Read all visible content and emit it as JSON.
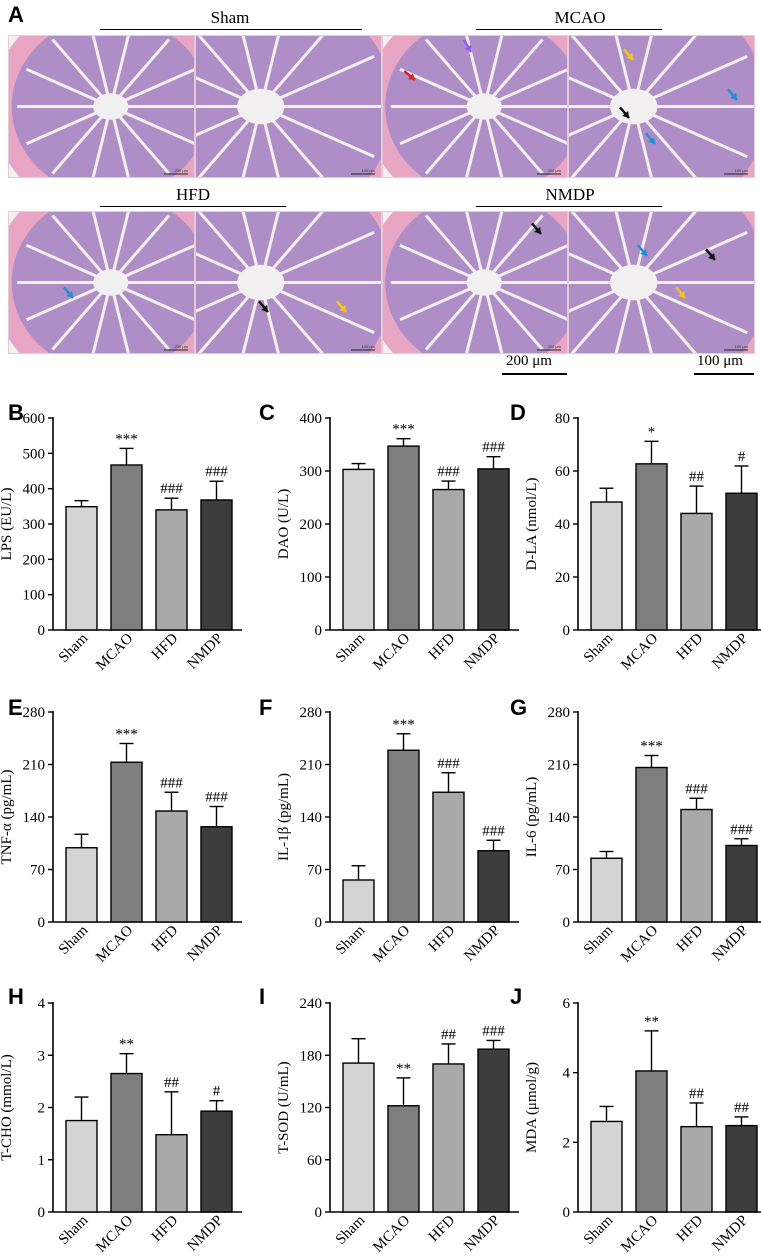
{
  "histology": {
    "panel_letter": "A",
    "groups": [
      {
        "label": "Sham"
      },
      {
        "label": "MCAO"
      },
      {
        "label": "HFD"
      },
      {
        "label": "NMDP"
      }
    ],
    "micrograph_scale_labels": [
      "200 μm",
      "100 μm",
      "200 μm",
      "100 μm",
      "200 μm",
      "100 μm",
      "200 μm",
      "100 μm"
    ],
    "scale_bars": [
      "200 μm",
      "100 μm"
    ],
    "arrow_colors": {
      "red": "#d8262b",
      "purple": "#8b5cf6",
      "yellow": "#f5c518",
      "black": "#111111",
      "blue": "#1f8fd6"
    },
    "tissue_colors": {
      "stroma": "#e9a6c4",
      "glands": "#a58ac8",
      "lumen": "#f2f0f1"
    }
  },
  "bar_colors": [
    "#d4d4d4",
    "#7e7e7e",
    "#a9a9a9",
    "#3d3d3d"
  ],
  "chart_data": [
    {
      "panel": "B",
      "type": "bar",
      "categories": [
        "Sham",
        "MCAO",
        "HFD",
        "NMDP"
      ],
      "values": [
        349,
        467,
        340,
        368
      ],
      "errors": [
        17,
        47,
        33,
        53
      ],
      "ylabel": "LPS (EU/L)",
      "ylim": [
        0,
        600
      ],
      "yticks": [
        "0",
        "100",
        "200",
        "300",
        "400",
        "500",
        "600"
      ],
      "annotations": [
        "",
        "***",
        "###",
        "###"
      ]
    },
    {
      "panel": "C",
      "type": "bar",
      "categories": [
        "Sham",
        "MCAO",
        "HFD",
        "NMDP"
      ],
      "values": [
        303,
        347,
        265,
        304
      ],
      "errors": [
        11,
        14,
        16,
        23
      ],
      "ylabel": "DAO (U/L)",
      "ylim": [
        0,
        400
      ],
      "yticks": [
        "0",
        "100",
        "200",
        "300",
        "400"
      ],
      "annotations": [
        "",
        "***",
        "###",
        "###"
      ]
    },
    {
      "panel": "D",
      "type": "bar",
      "categories": [
        "Sham",
        "MCAO",
        "HFD",
        "NMDP"
      ],
      "values": [
        48.3,
        62.7,
        44.0,
        51.6
      ],
      "errors": [
        5.2,
        8.5,
        10.3,
        10.3
      ],
      "ylabel": "D-LA (nmol/L)",
      "ylim": [
        0,
        80
      ],
      "yticks": [
        "0",
        "20",
        "40",
        "60",
        "80"
      ],
      "annotations": [
        "",
        "*",
        "##",
        "#"
      ]
    },
    {
      "panel": "E",
      "type": "bar",
      "categories": [
        "Sham",
        "MCAO",
        "HFD",
        "NMDP"
      ],
      "values": [
        99,
        213,
        148,
        127
      ],
      "errors": [
        18,
        25,
        25,
        27
      ],
      "ylabel": "TNF-α (pg/mL)",
      "ylim": [
        0,
        280
      ],
      "yticks": [
        "0",
        "70",
        "140",
        "210",
        "280"
      ],
      "annotations": [
        "",
        "***",
        "###",
        "###"
      ]
    },
    {
      "panel": "F",
      "type": "bar",
      "categories": [
        "Sham",
        "MCAO",
        "HFD",
        "NMDP"
      ],
      "values": [
        56,
        229,
        173,
        95
      ],
      "errors": [
        19,
        22,
        26,
        14
      ],
      "ylabel": "IL-1β (pg/mL)",
      "ylim": [
        0,
        280
      ],
      "yticks": [
        "0",
        "70",
        "140",
        "210",
        "280"
      ],
      "annotations": [
        "",
        "***",
        "###",
        "###"
      ]
    },
    {
      "panel": "G",
      "type": "bar",
      "categories": [
        "Sham",
        "MCAO",
        "HFD",
        "NMDP"
      ],
      "values": [
        85,
        206,
        150,
        102
      ],
      "errors": [
        9,
        16,
        15,
        9
      ],
      "ylabel": "IL-6 (pg/mL)",
      "ylim": [
        0,
        280
      ],
      "yticks": [
        "0",
        "70",
        "140",
        "210",
        "280"
      ],
      "annotations": [
        "",
        "***",
        "###",
        "###"
      ]
    },
    {
      "panel": "H",
      "type": "bar",
      "categories": [
        "Sham",
        "MCAO",
        "HFD",
        "NMDP"
      ],
      "values": [
        1.75,
        2.65,
        1.48,
        1.93
      ],
      "errors": [
        0.45,
        0.38,
        0.82,
        0.2
      ],
      "ylabel": "T-CHO (mmol/L)",
      "ylim": [
        0,
        4
      ],
      "yticks": [
        "0",
        "1",
        "2",
        "3",
        "4"
      ],
      "annotations": [
        "",
        "**",
        "##",
        "#"
      ]
    },
    {
      "panel": "I",
      "type": "bar",
      "categories": [
        "Sham",
        "MCAO",
        "HFD",
        "NMDP"
      ],
      "values": [
        171,
        122,
        170,
        187
      ],
      "errors": [
        28,
        32,
        23,
        10
      ],
      "ylabel": "T-SOD (U/mL)",
      "ylim": [
        0,
        240
      ],
      "yticks": [
        "0",
        "60",
        "120",
        "180",
        "240"
      ],
      "annotations": [
        "",
        "**",
        "##",
        "###"
      ]
    },
    {
      "panel": "J",
      "type": "bar",
      "categories": [
        "Sham",
        "MCAO",
        "HFD",
        "NMDP"
      ],
      "values": [
        2.6,
        4.05,
        2.45,
        2.48
      ],
      "errors": [
        0.43,
        1.15,
        0.68,
        0.25
      ],
      "ylabel": "MDA (μmol/g)",
      "ylim": [
        0,
        6
      ],
      "yticks": [
        "0",
        "2",
        "4",
        "6"
      ],
      "annotations": [
        "",
        "**",
        "##",
        "##"
      ]
    }
  ]
}
